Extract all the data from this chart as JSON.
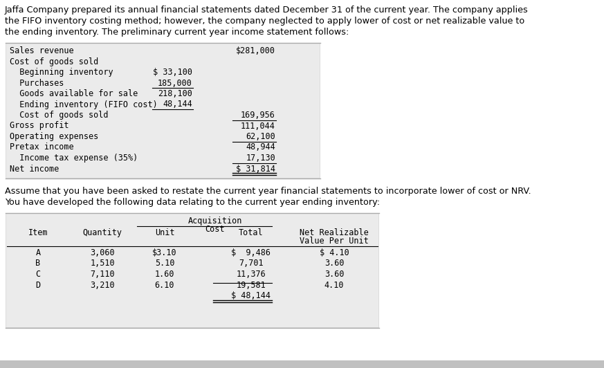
{
  "intro_text": "Jaffa Company prepared its annual financial statements dated December 31 of the current year. The company applies\nthe FIFO inventory costing method; however, the company neglected to apply lower of cost or net realizable value to\nthe ending inventory. The preliminary current year income statement follows:",
  "assume_text": "Assume that you have been asked to restate the current year financial statements to incorporate lower of cost or NRV.\nYou have developed the following data relating to the current year ending inventory:",
  "income_rows": [
    {
      "label": "Sales revenue",
      "indent": 0,
      "col1": "",
      "col2": "$281,000",
      "ul_col1": false,
      "ul_col2": false,
      "dbl_col2": false
    },
    {
      "label": "Cost of goods sold",
      "indent": 0,
      "col1": "",
      "col2": "",
      "ul_col1": false,
      "ul_col2": false,
      "dbl_col2": false
    },
    {
      "label": "  Beginning inventory",
      "indent": 0,
      "col1": "$ 33,100",
      "col2": "",
      "ul_col1": false,
      "ul_col2": false,
      "dbl_col2": false
    },
    {
      "label": "  Purchases",
      "indent": 0,
      "col1": "185,000",
      "col2": "",
      "ul_col1": true,
      "ul_col2": false,
      "dbl_col2": false
    },
    {
      "label": "  Goods available for sale",
      "indent": 0,
      "col1": "218,100",
      "col2": "",
      "ul_col1": false,
      "ul_col2": false,
      "dbl_col2": false
    },
    {
      "label": "  Ending inventory (FIFO cost)",
      "indent": 0,
      "col1": "48,144",
      "col2": "",
      "ul_col1": true,
      "ul_col2": false,
      "dbl_col2": false
    },
    {
      "label": "  Cost of goods sold",
      "indent": 0,
      "col1": "",
      "col2": "169,956",
      "ul_col1": false,
      "ul_col2": true,
      "dbl_col2": false
    },
    {
      "label": "Gross profit",
      "indent": 0,
      "col1": "",
      "col2": "111,044",
      "ul_col1": false,
      "ul_col2": false,
      "dbl_col2": false
    },
    {
      "label": "Operating expenses",
      "indent": 0,
      "col1": "",
      "col2": "62,100",
      "ul_col1": false,
      "ul_col2": true,
      "dbl_col2": false
    },
    {
      "label": "Pretax income",
      "indent": 0,
      "col1": "",
      "col2": "48,944",
      "ul_col1": false,
      "ul_col2": false,
      "dbl_col2": false
    },
    {
      "label": "  Income tax expense (35%)",
      "indent": 0,
      "col1": "",
      "col2": "17,130",
      "ul_col1": false,
      "ul_col2": true,
      "dbl_col2": false
    },
    {
      "label": "Net income",
      "indent": 0,
      "col1": "",
      "col2": "$ 31,814",
      "ul_col1": false,
      "ul_col2": false,
      "dbl_col2": true
    }
  ],
  "table2_rows": [
    [
      "A",
      "3,060",
      "$3.10",
      "$  9,486",
      "$ 4.10"
    ],
    [
      "B",
      "1,510",
      "5.10",
      "7,701",
      "3.60"
    ],
    [
      "C",
      "7,110",
      "1.60",
      "11,376",
      "3.60"
    ],
    [
      "D",
      "3,210",
      "6.10",
      "19,581",
      "4.10"
    ]
  ],
  "table2_total": "$ 48,144",
  "bg_color": "#ffffff",
  "table_bg": "#dcdcdc",
  "table_inner": "#ebebeb",
  "font_size": 8.5,
  "mono_font": "DejaVu Sans Mono"
}
